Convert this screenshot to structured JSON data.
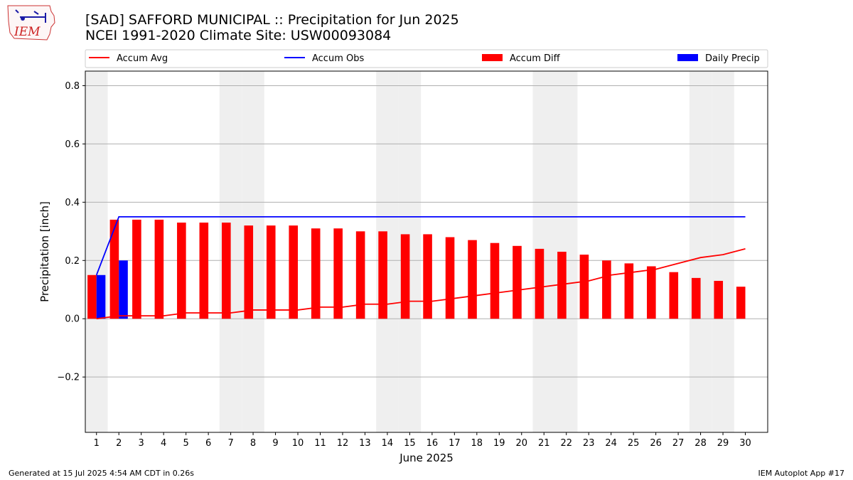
{
  "header": {
    "title_line1": "[SAD] SAFFORD MUNICIPAL :: Precipitation for Jun 2025",
    "title_line2": "NCEI 1991-2020 Climate Site: USW00093084"
  },
  "logo": {
    "text": "IEM"
  },
  "footer": {
    "left": "Generated at 15 Jul 2025 4:54 AM CDT in 0.26s",
    "right": "IEM Autoplot App #17"
  },
  "chart_data": {
    "type": "bar",
    "xlabel": "June 2025",
    "ylabel": "Precipitation [inch]",
    "ylim": [
      -0.39,
      0.85
    ],
    "yticks": [
      -0.2,
      0.0,
      0.2,
      0.4,
      0.6,
      0.8
    ],
    "ytick_labels": [
      "−0.2",
      "0.0",
      "0.2",
      "0.4",
      "0.6",
      "0.8"
    ],
    "grid": true,
    "legend_placement": "top",
    "days": [
      1,
      2,
      3,
      4,
      5,
      6,
      7,
      8,
      9,
      10,
      11,
      12,
      13,
      14,
      15,
      16,
      17,
      18,
      19,
      20,
      21,
      22,
      23,
      24,
      25,
      26,
      27,
      28,
      29,
      30
    ],
    "weekend_days": [
      1,
      7,
      8,
      14,
      15,
      21,
      22,
      28,
      29
    ],
    "series": [
      {
        "name": "Accum Avg",
        "kind": "line",
        "color": "#ff0000",
        "values": [
          0.0,
          0.01,
          0.01,
          0.01,
          0.02,
          0.02,
          0.02,
          0.03,
          0.03,
          0.03,
          0.04,
          0.04,
          0.05,
          0.05,
          0.06,
          0.06,
          0.07,
          0.08,
          0.09,
          0.1,
          0.11,
          0.12,
          0.13,
          0.15,
          0.16,
          0.17,
          0.19,
          0.21,
          0.22,
          0.24
        ]
      },
      {
        "name": "Accum Obs",
        "kind": "line",
        "color": "#0000ff",
        "values": [
          0.15,
          0.35,
          0.35,
          0.35,
          0.35,
          0.35,
          0.35,
          0.35,
          0.35,
          0.35,
          0.35,
          0.35,
          0.35,
          0.35,
          0.35,
          0.35,
          0.35,
          0.35,
          0.35,
          0.35,
          0.35,
          0.35,
          0.35,
          0.35,
          0.35,
          0.35,
          0.35,
          0.35,
          0.35,
          0.35
        ]
      },
      {
        "name": "Accum Diff",
        "kind": "bar",
        "color": "#ff0000",
        "values": [
          0.15,
          0.34,
          0.34,
          0.34,
          0.33,
          0.33,
          0.33,
          0.32,
          0.32,
          0.32,
          0.31,
          0.31,
          0.3,
          0.3,
          0.29,
          0.29,
          0.28,
          0.27,
          0.26,
          0.25,
          0.24,
          0.23,
          0.22,
          0.2,
          0.19,
          0.18,
          0.16,
          0.14,
          0.13,
          0.11
        ]
      },
      {
        "name": "Daily Precip",
        "kind": "bar",
        "color": "#0000ff",
        "values": [
          0.15,
          0.2,
          0,
          0,
          0,
          0,
          0,
          0,
          0,
          0,
          0,
          0,
          0,
          0,
          0,
          0,
          0,
          0,
          0,
          0,
          0,
          0,
          0,
          0,
          0,
          0,
          0,
          0,
          0,
          0
        ]
      }
    ]
  }
}
